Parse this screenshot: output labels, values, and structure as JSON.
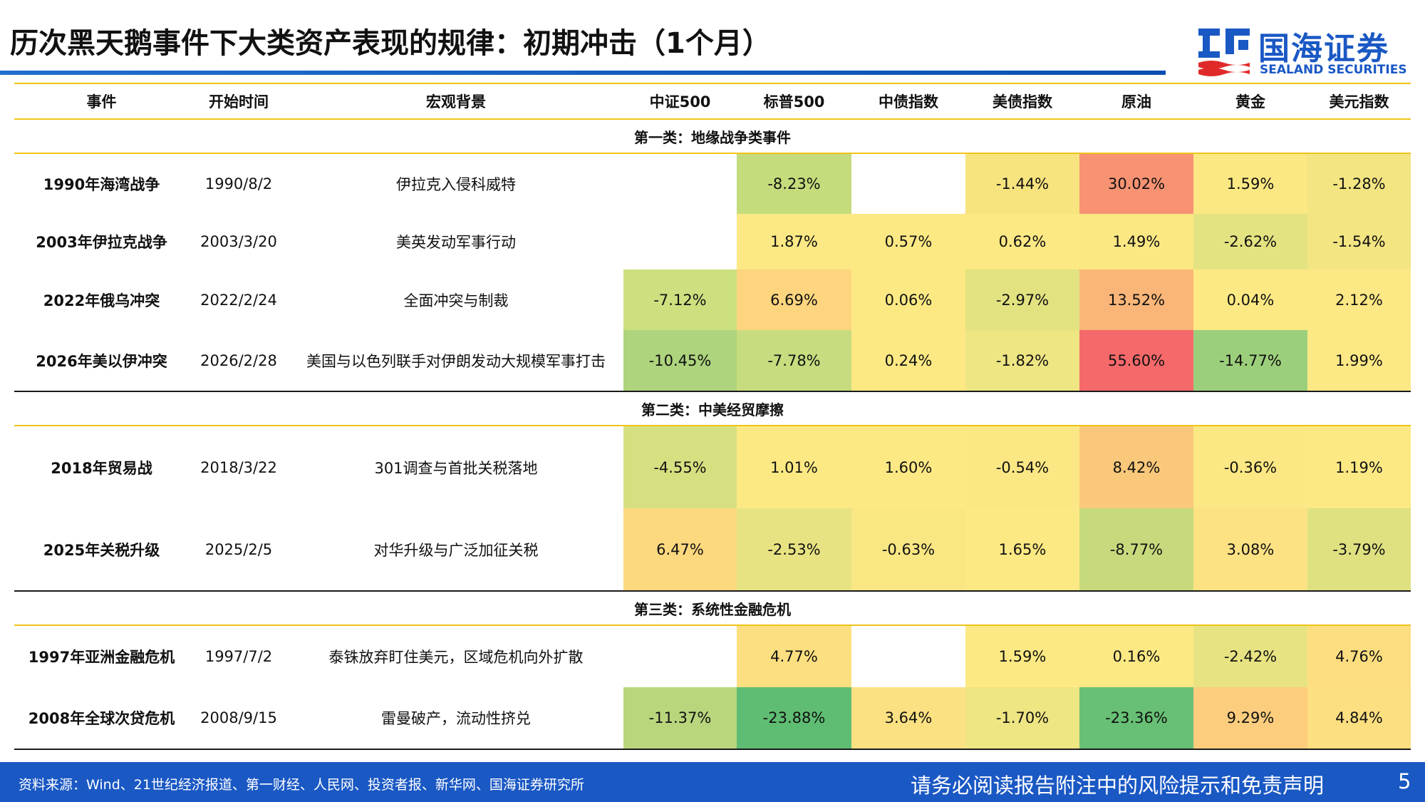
{
  "title": "历次黑天鹅事件下大类资产表现的规律：初期冲击（1个月）",
  "logo": {
    "cn": "国海证券",
    "en": "SEALAND SECURITIES",
    "mark_icon": "sealand-logo-mark"
  },
  "table": {
    "headers": [
      "事件",
      "开始时间",
      "宏观背景",
      "中证500",
      "标普500",
      "中债指数",
      "美债指数",
      "原油",
      "黄金",
      "美元指数"
    ],
    "groups": [
      {
        "label": "第一类：地缘战争类事件",
        "rows": [
          {
            "event": "1990年海湾战争",
            "date": "1990/8/2",
            "background": "伊拉克入侵科威特",
            "values": [
              "",
              "-8.23%",
              "",
              "-1.44%",
              "30.02%",
              "1.59%",
              "-1.28%"
            ],
            "colors": [
              "#ffffff",
              "#c5dc7c",
              "#ffffff",
              "#f7e47f",
              "#f79273",
              "#fbe883",
              "#f3e582"
            ]
          },
          {
            "event": "2003年伊拉克战争",
            "date": "2003/3/20",
            "background": "美英发动军事行动",
            "values": [
              "",
              "1.87%",
              "0.57%",
              "0.62%",
              "1.49%",
              "-2.62%",
              "-1.54%"
            ],
            "colors": [
              "#ffffff",
              "#fce884",
              "#fde984",
              "#fde984",
              "#fbe883",
              "#e4e381",
              "#f3e582"
            ]
          },
          {
            "event": "2022年俄乌冲突",
            "date": "2022/2/24",
            "background": "全面冲突与制裁",
            "values": [
              "-7.12%",
              "6.69%",
              "0.06%",
              "-2.97%",
              "13.52%",
              "0.04%",
              "2.12%"
            ],
            "colors": [
              "#cde080",
              "#fcd57e",
              "#fde984",
              "#e2e281",
              "#f9b678",
              "#fde984",
              "#fce884"
            ]
          },
          {
            "event": "2026年美以伊冲突",
            "date": "2026/2/28",
            "background": "美国与以色列联手对伊朗发动大规模军事打击",
            "values": [
              "-10.45%",
              "-7.78%",
              "0.24%",
              "-1.82%",
              "55.60%",
              "-14.77%",
              "1.99%"
            ],
            "colors": [
              "#aed47d",
              "#c7dc7e",
              "#fde984",
              "#eee583",
              "#f6696a",
              "#9ccf7b",
              "#fce884"
            ]
          }
        ]
      },
      {
        "label": "第二类：中美经贸摩擦",
        "rows": [
          {
            "event": "2018年贸易战",
            "date": "2018/3/22",
            "background": "301调查与首批关税落地",
            "values": [
              "-4.55%",
              "1.01%",
              "1.60%",
              "-0.54%",
              "8.42%",
              "-0.36%",
              "1.19%"
            ],
            "colors": [
              "#d7e080",
              "#fde984",
              "#fde984",
              "#fbe783",
              "#f9c87b",
              "#fbe783",
              "#fde984"
            ]
          },
          {
            "event": "2025年关税升级",
            "date": "2025/2/5",
            "background": "对华升级与广泛加征关税",
            "values": [
              "6.47%",
              "-2.53%",
              "-0.63%",
              "1.65%",
              "-8.77%",
              "3.08%",
              "-3.79%"
            ],
            "colors": [
              "#fcd87f",
              "#e8e382",
              "#f9e783",
              "#fde984",
              "#c6da7d",
              "#fde284",
              "#dfe181"
            ]
          }
        ]
      },
      {
        "label": "第三类：系统性金融危机",
        "rows": [
          {
            "event": "1997年亚洲金融危机",
            "date": "1997/7/2",
            "background": "泰铢放弃盯住美元，区域危机向外扩散",
            "values": [
              "",
              "4.77%",
              "",
              "1.59%",
              "0.16%",
              "-2.42%",
              "4.76%"
            ],
            "colors": [
              "#ffffff",
              "#fcdf80",
              "#ffffff",
              "#fde984",
              "#fde984",
              "#e7e382",
              "#fcde80"
            ]
          },
          {
            "event": "2008年全球次贷危机",
            "date": "2008/9/15",
            "background": "雷曼破产，流动性挤兑",
            "values": [
              "-11.37%",
              "-23.88%",
              "3.64%",
              "-1.70%",
              "-23.36%",
              "9.29%",
              "4.84%"
            ],
            "colors": [
              "#b9d67d",
              "#5fbd73",
              "#fce183",
              "#eee583",
              "#67c075",
              "#fbcd7d",
              "#fcdf80"
            ]
          }
        ]
      }
    ]
  },
  "footer": {
    "source": "资料来源：Wind、21世纪经济报道、第一财经、人民网、投资者报、新华网、国海证券研究所",
    "disclaimer": "请务必阅读报告附注中的风险提示和免责声明",
    "page": "5"
  }
}
